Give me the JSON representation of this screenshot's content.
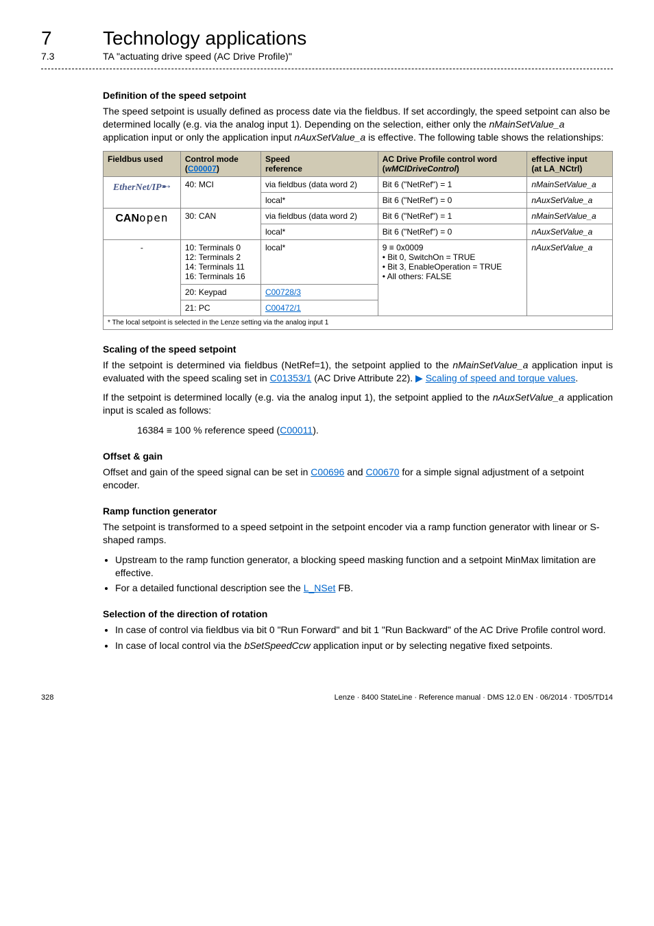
{
  "header": {
    "chapter_num": "7",
    "chapter_title": "Technology applications",
    "sub_num": "7.3",
    "sub_title": "TA \"actuating drive speed (AC Drive Profile)\""
  },
  "section1": {
    "title": "Definition of the speed setpoint",
    "para": "The speed setpoint is usually defined as process date via the fieldbus. If set accordingly, the speed setpoint can also be determined locally (e.g. via the analog input 1). Depending on the selection, either only the ",
    "em1": "nMainSetValue_a",
    "mid1": " application input or only the application input ",
    "em2": "nAuxSetValue_a",
    "end1": " is effective. The following table shows the relationships:"
  },
  "table": {
    "headers": {
      "c1": "Fieldbus used",
      "c2a": "Control mode",
      "c2b_link": "C00007",
      "c3a": "Speed",
      "c3b": "reference",
      "c4a": "AC Drive Profile control word",
      "c4b_em": "wMCIDriveControl",
      "c5a": "effective input",
      "c5b": "(at LA_NCtrl)"
    },
    "r1": {
      "c2": "40: MCI",
      "c3": "via fieldbus (data word 2)",
      "c4": "Bit 6 (\"NetRef\") = 1",
      "c5": "nMainSetValue_a"
    },
    "r2": {
      "c3": "local*",
      "c4": "Bit 6 (\"NetRef\") = 0",
      "c5": "nAuxSetValue_a"
    },
    "r3": {
      "c2": "30: CAN",
      "c3": "via fieldbus (data word 2)",
      "c4": "Bit 6 (\"NetRef\") = 1",
      "c5": "nMainSetValue_a"
    },
    "r4": {
      "c3": "local*",
      "c4": "Bit 6 (\"NetRef\") = 0",
      "c5": "nAuxSetValue_a"
    },
    "r5": {
      "c1": "-",
      "c2a": "10: Terminals 0",
      "c2b": "12: Terminals 2",
      "c2c": "14: Terminals 11",
      "c2d": "16: Terminals 16",
      "c3": "local*",
      "c4a": "9 ≡ 0x0009",
      "c4b": "Bit 0, SwitchOn = TRUE",
      "c4c": "Bit 3, EnableOperation = TRUE",
      "c4d": "All others: FALSE",
      "c5": "nAuxSetValue_a"
    },
    "r6": {
      "c2": "20: Keypad",
      "c3_link": "C00728/3"
    },
    "r7": {
      "c2": "21: PC",
      "c3_link": "C00472/1"
    },
    "footnote": "* The local setpoint is selected in the Lenze setting via the analog input 1"
  },
  "section2": {
    "title": "Scaling of the speed setpoint",
    "p1a": "If the setpoint is determined via fieldbus (NetRef=1), the setpoint applied to the ",
    "p1_em": "nMainSetValue_a",
    "p1b": " application input is evaluated with the speed scaling set in ",
    "p1_link": "C01353/1",
    "p1c": " (AC Drive Attribute 22). ",
    "p1_link2": "Scaling of speed and torque values",
    "p1d": ".",
    "p2a": "If the setpoint is determined locally (e.g. via the analog input 1), the setpoint applied to the ",
    "p2_em": "nAuxSetValue_a",
    "p2b": " application input is scaled as follows:",
    "formula_a": "16384 ≡ 100 % reference speed (",
    "formula_link": "C00011",
    "formula_b": ")."
  },
  "section3": {
    "title": "Offset & gain",
    "p1a": "Offset and gain of the speed signal can be set in ",
    "link1": "C00696",
    "p1b": " and ",
    "link2": "C00670",
    "p1c": " for a simple signal adjustment of a setpoint encoder."
  },
  "section4": {
    "title": "Ramp function generator",
    "p1": "The setpoint is transformed to a speed setpoint in the setpoint encoder via a ramp function generator with linear or S-shaped ramps.",
    "b1": "Upstream to the ramp function generator, a blocking speed masking function and a setpoint MinMax limitation are effective.",
    "b2a": "For a detailed functional description see the ",
    "b2_link": "L_NSet",
    "b2b": " FB."
  },
  "section5": {
    "title": "Selection of the direction of rotation",
    "b1": "In case of control via fieldbus via bit 0 \"Run Forward\" and bit 1 \"Run Backward\" of the AC Drive Profile control word.",
    "b2a": "In case of local control via the ",
    "b2_em": "bSetSpeedCcw",
    "b2b": " application input or by selecting negative fixed setpoints."
  },
  "footer": {
    "page": "328",
    "ref": "Lenze · 8400 StateLine · Reference manual · DMS 12.0 EN · 06/2014 · TD05/TD14"
  }
}
